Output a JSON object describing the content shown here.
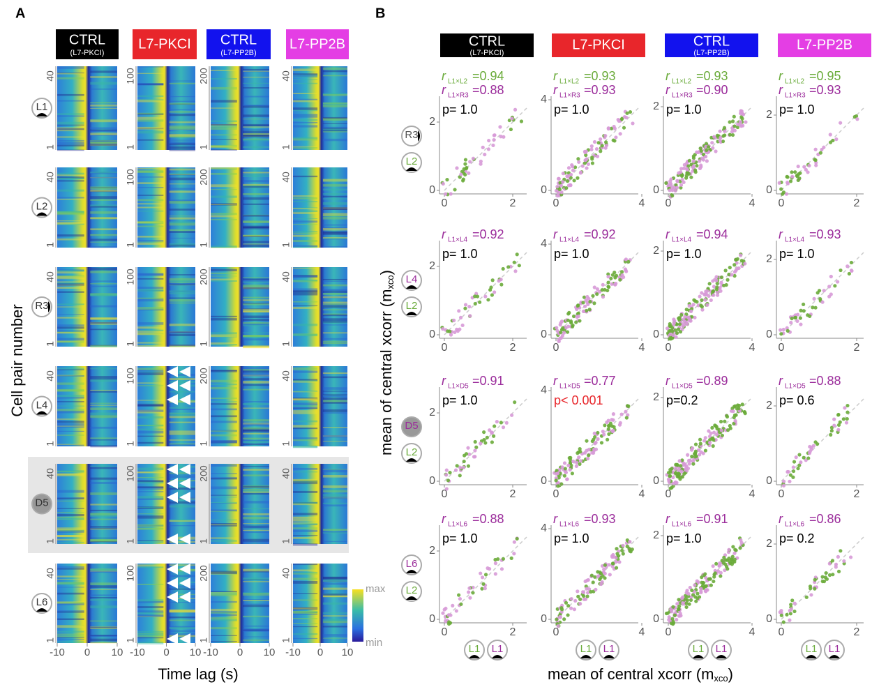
{
  "columns": [
    {
      "title": "CTRL",
      "subtitle": "(L7-PKCI)",
      "color": "#000000"
    },
    {
      "title": "L7-PKCI",
      "color": "#e8262b"
    },
    {
      "title": "CTRL",
      "subtitle": "(L7-PP2B)",
      "color": "#1212ee"
    },
    {
      "title": "L7-PP2B",
      "color": "#e43ee4"
    }
  ],
  "panel_a": {
    "label": "A",
    "y_label": "Cell pair number",
    "x_label": "Time lag (s)",
    "xticks": [
      -10,
      0,
      10
    ],
    "ymax_ticks": [
      40,
      100,
      200,
      40
    ],
    "ymin_tick": 1,
    "rows": [
      "L1",
      "L2",
      "R3",
      "L4",
      "D5",
      "L6"
    ],
    "colorbar": [
      "max",
      "min"
    ]
  },
  "panel_b": {
    "label": "B",
    "axis_label": "mean of central xcorr (m",
    "axis_sub": "xco",
    "axis_end": ")",
    "r_symbol": "r",
    "xticks": [
      [
        0,
        2
      ],
      [
        0,
        4
      ],
      [
        0,
        4
      ],
      [
        0,
        2
      ]
    ],
    "yticks": [
      [
        0,
        2
      ],
      [
        0,
        4
      ],
      [
        0,
        2
      ],
      [
        0,
        2
      ]
    ],
    "row_icons": [
      [
        "R3",
        "L2"
      ],
      [
        "L4",
        "L2"
      ],
      [
        "D5",
        "L2"
      ],
      [
        "L6",
        "L2"
      ]
    ],
    "bottom_icons": [
      "L1",
      "L1"
    ],
    "stats": [
      [
        {
          "r": [
            {
              "sub": "L1×L2",
              "val": "=0.94",
              "color": "#6aab3a"
            },
            {
              "sub": "L1×R3",
              "val": "=0.88",
              "color": "#9b2c9b"
            }
          ],
          "p": "p= 1.0",
          "p_color": "#000000"
        },
        {
          "r": [
            {
              "sub": "L1×L2",
              "val": "=0.93",
              "color": "#6aab3a"
            },
            {
              "sub": "L1×R3",
              "val": "=0.93",
              "color": "#9b2c9b"
            }
          ],
          "p": "p= 1.0",
          "p_color": "#000000"
        },
        {
          "r": [
            {
              "sub": "L1×L2",
              "val": "=0.93",
              "color": "#6aab3a"
            },
            {
              "sub": "L1×R3",
              "val": "=0.90",
              "color": "#9b2c9b"
            }
          ],
          "p": "p= 1.0",
          "p_color": "#000000"
        },
        {
          "r": [
            {
              "sub": "L1×L2",
              "val": "=0.95",
              "color": "#6aab3a"
            },
            {
              "sub": "L1×R3",
              "val": "=0.93",
              "color": "#9b2c9b"
            }
          ],
          "p": "p= 1.0",
          "p_color": "#000000"
        }
      ],
      [
        {
          "r": [
            {
              "sub": "L1×L4",
              "val": "=0.92",
              "color": "#9b2c9b"
            }
          ],
          "p": "p= 1.0",
          "p_color": "#000000"
        },
        {
          "r": [
            {
              "sub": "L1×L4",
              "val": "=0.92",
              "color": "#9b2c9b"
            }
          ],
          "p": "p= 1.0",
          "p_color": "#000000"
        },
        {
          "r": [
            {
              "sub": "L1×L4",
              "val": "=0.94",
              "color": "#9b2c9b"
            }
          ],
          "p": "p= 1.0",
          "p_color": "#000000"
        },
        {
          "r": [
            {
              "sub": "L1×L4",
              "val": "=0.93",
              "color": "#9b2c9b"
            }
          ],
          "p": "p= 1.0",
          "p_color": "#000000"
        }
      ],
      [
        {
          "r": [
            {
              "sub": "L1×D5",
              "val": "=0.91",
              "color": "#9b2c9b"
            }
          ],
          "p": "p= 1.0",
          "p_color": "#000000"
        },
        {
          "r": [
            {
              "sub": "L1×D5",
              "val": "=0.77",
              "color": "#9b2c9b"
            }
          ],
          "p": "p< 0.001",
          "p_color": "#e8262b"
        },
        {
          "r": [
            {
              "sub": "L1×D5",
              "val": "=0.89",
              "color": "#9b2c9b"
            }
          ],
          "p": "p=0.2",
          "p_color": "#000000"
        },
        {
          "r": [
            {
              "sub": "L1×D5",
              "val": "=0.88",
              "color": "#9b2c9b"
            }
          ],
          "p": "p= 0.6",
          "p_color": "#000000"
        }
      ],
      [
        {
          "r": [
            {
              "sub": "L1×L6",
              "val": "=0.88",
              "color": "#9b2c9b"
            }
          ],
          "p": "p= 1.0",
          "p_color": "#000000"
        },
        {
          "r": [
            {
              "sub": "L1×L6",
              "val": "=0.93",
              "color": "#9b2c9b"
            }
          ],
          "p": "p= 1.0",
          "p_color": "#000000"
        },
        {
          "r": [
            {
              "sub": "L1×L6",
              "val": "=0.91",
              "color": "#9b2c9b"
            }
          ],
          "p": "p= 1.0",
          "p_color": "#000000"
        },
        {
          "r": [
            {
              "sub": "L1×L6",
              "val": "=0.86",
              "color": "#9b2c9b"
            }
          ],
          "p": "p= 0.2",
          "p_color": "#000000"
        }
      ]
    ]
  }
}
